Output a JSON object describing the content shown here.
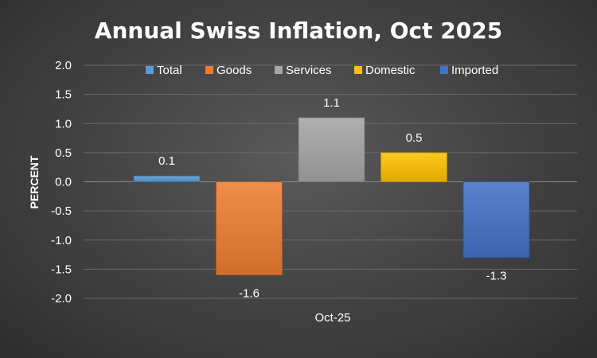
{
  "chart_data": {
    "type": "bar",
    "title": "Annual Swiss Inflation, Oct 2025",
    "categories": [
      "Oct-25"
    ],
    "series": [
      {
        "name": "Total",
        "values": [
          0.1
        ],
        "color": "#5b9bd5",
        "label": "0.1"
      },
      {
        "name": "Goods",
        "values": [
          -1.6
        ],
        "color": "#ed7d31",
        "label": "-1.6"
      },
      {
        "name": "Services",
        "values": [
          1.1
        ],
        "color": "#a5a5a5",
        "label": "1.1"
      },
      {
        "name": "Domestic",
        "values": [
          0.5
        ],
        "color": "#ffc000",
        "label": "0.5"
      },
      {
        "name": "Imported",
        "values": [
          -1.3
        ],
        "color": "#4472c4",
        "label": "-1.3"
      }
    ],
    "xlabel": "",
    "ylabel": "PERCENT",
    "ylim": [
      -2.0,
      2.0
    ],
    "yticks": [
      2.0,
      1.5,
      1.0,
      0.5,
      0.0,
      -0.5,
      -1.0,
      -1.5,
      -2.0
    ],
    "ytick_labels": [
      "2.0",
      "1.5",
      "1.0",
      "0.5",
      "0.0",
      "-0.5",
      "-1.0",
      "-1.5",
      "-2.0"
    ],
    "grid": true,
    "legend": "top"
  }
}
